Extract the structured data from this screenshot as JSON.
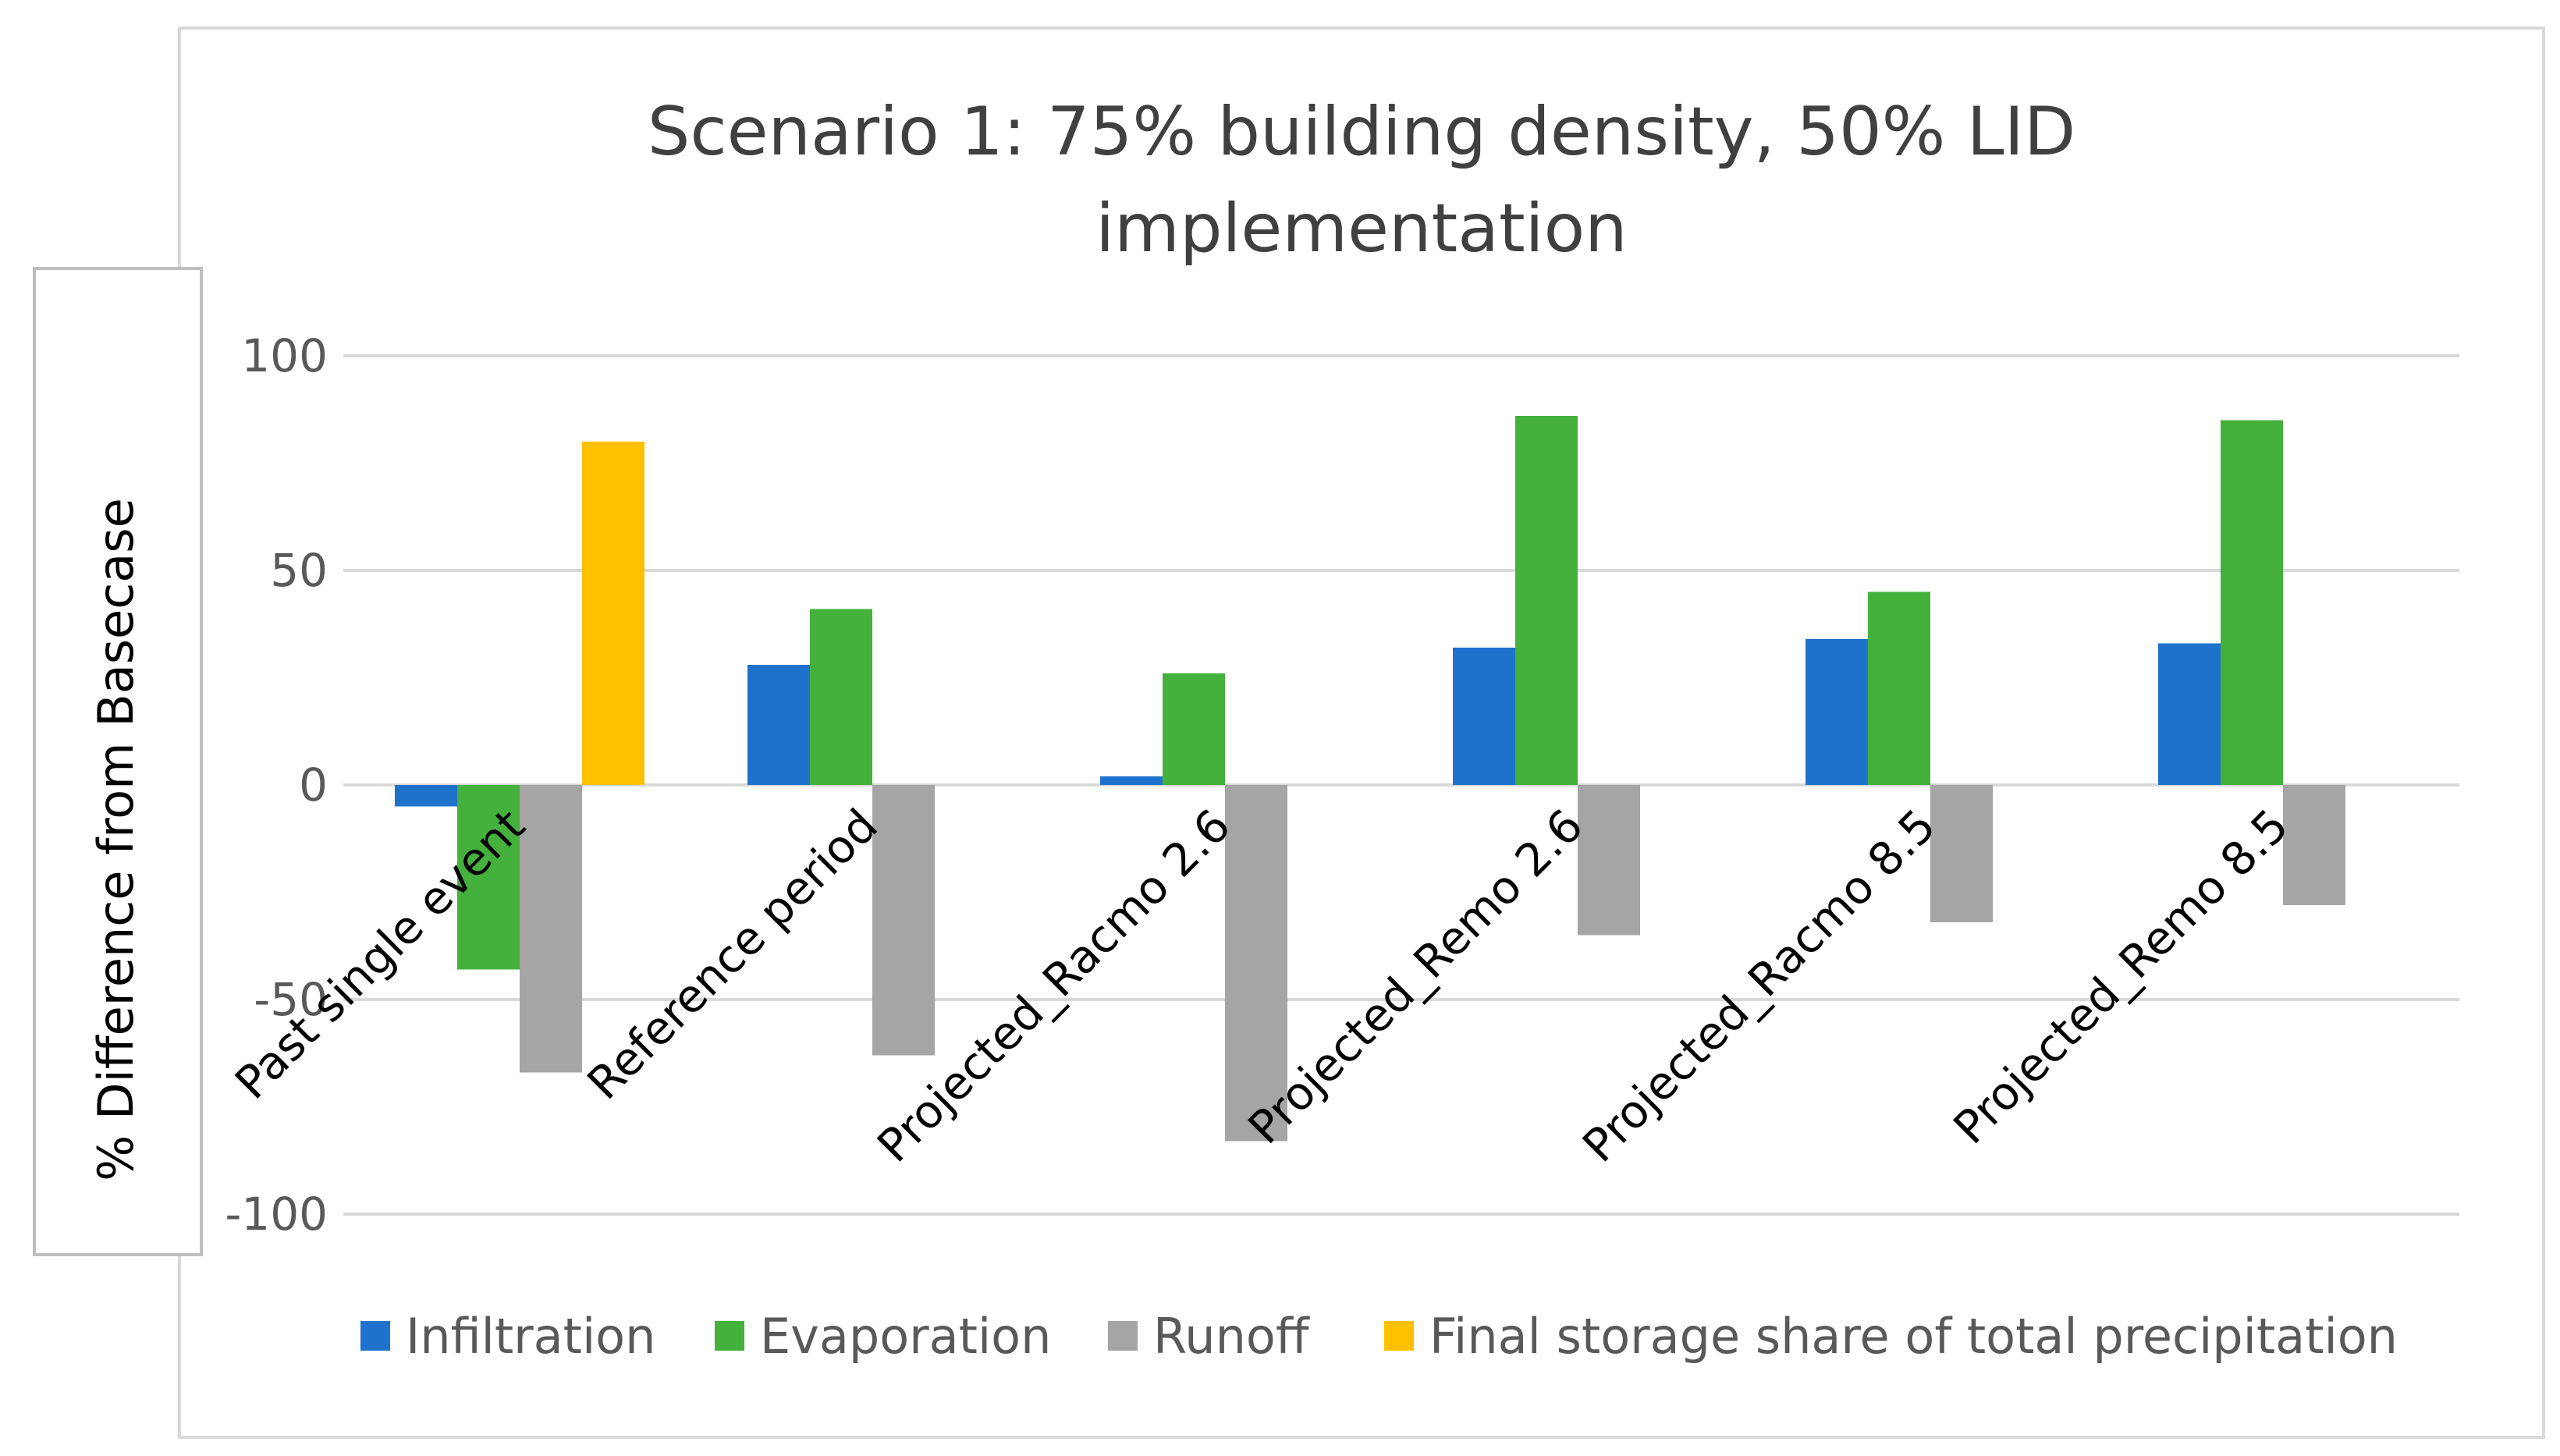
{
  "chart_data": {
    "type": "bar",
    "title_lines": [
      "Scenario 1: 75% building density, 50% LID",
      "implementation"
    ],
    "ylabel": "% Difference from Basecase",
    "xlabel": "",
    "ylim": [
      -100,
      100
    ],
    "yticks": [
      100,
      50,
      0,
      -50,
      -100
    ],
    "grid": true,
    "legend_position": "bottom",
    "categories": [
      "Past single event",
      "Reference period",
      "Projected_Racmo 2.6",
      "Projected_Remo 2.6",
      "Projected_Racmo 8.5",
      "Projected_Remo 8.5"
    ],
    "series": [
      {
        "name": "Infiltration",
        "color": "#1F72CC",
        "values": [
          -5,
          28,
          2,
          32,
          34,
          33
        ]
      },
      {
        "name": "Evaporation",
        "color": "#44B13D",
        "values": [
          -43,
          41,
          26,
          86,
          45,
          85
        ]
      },
      {
        "name": "Runoff",
        "color": "#A5A5A5",
        "values": [
          -67,
          -63,
          -83,
          -35,
          -32,
          -28
        ]
      },
      {
        "name": "Final storage share of total precipitation",
        "color": "#FFC000",
        "values": [
          80,
          null,
          null,
          null,
          null,
          null
        ]
      }
    ]
  }
}
